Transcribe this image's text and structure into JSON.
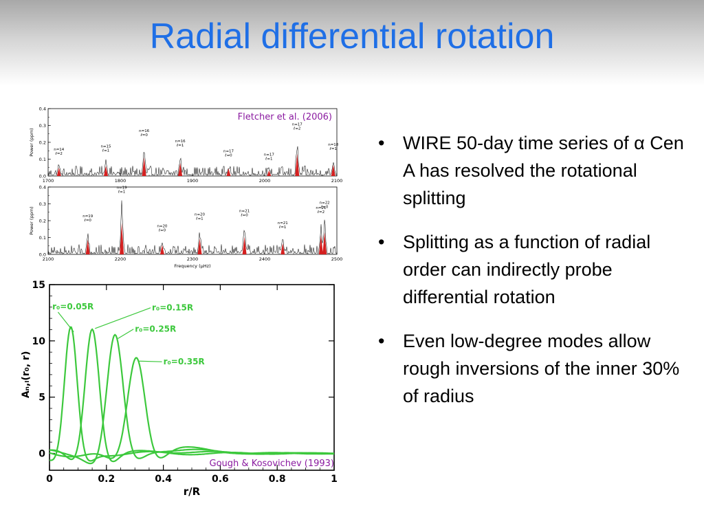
{
  "slide": {
    "title": "Radial differential rotation"
  },
  "bullets": [
    {
      "text": "WIRE 50-day time series of α Cen A has resolved the rotational splitting"
    },
    {
      "text": "Splitting as a function of radial order can indirectly probe differential rotation"
    },
    {
      "text": "Even low-degree modes allow rough inversions of the inner 30% of radius"
    }
  ],
  "bullet_glyph": "•",
  "chart_data": [
    {
      "type": "line",
      "caption": "Fletcher et al. (2006)",
      "panels": [
        {
          "ylabel": "Power (ppm)",
          "ylim": [
            0,
            0.4
          ],
          "yticks": [
            "0.0",
            "0.1",
            "0.2",
            "0.3",
            "0.4"
          ],
          "xlim": [
            1700,
            2100
          ],
          "xticks": [
            "1700",
            "1800",
            "1900",
            "2000",
            "2100"
          ],
          "mode_labels": [
            {
              "freq": 1715,
              "n": "n=14",
              "l": "ℓ=2"
            },
            {
              "freq": 1780,
              "n": "n=15",
              "l": "ℓ=1"
            },
            {
              "freq": 1833,
              "n": "n=16",
              "l": "ℓ=0"
            },
            {
              "freq": 1883,
              "n": "n=16",
              "l": "ℓ=1"
            },
            {
              "freq": 1950,
              "n": "n=17",
              "l": "ℓ=0"
            },
            {
              "freq": 2006,
              "n": "n=17",
              "l": "ℓ=1"
            },
            {
              "freq": 2045,
              "n": "n=17",
              "l": "ℓ=2"
            },
            {
              "freq": 2095,
              "n": "n=18",
              "l": "ℓ=1"
            }
          ]
        },
        {
          "ylabel": "Power (ppm)",
          "ylim": [
            0,
            0.4
          ],
          "yticks": [
            "0.0",
            "0.1",
            "0.2",
            "0.3",
            "0.4"
          ],
          "xlim": [
            2100,
            2500
          ],
          "xticks": [
            "2100",
            "2200",
            "2300",
            "2400",
            "2500"
          ],
          "xlabel": "Frequency (μHz)",
          "mode_labels": [
            {
              "freq": 2155,
              "n": "n=19",
              "l": "ℓ=0"
            },
            {
              "freq": 2202,
              "n": "n=19",
              "l": "ℓ=1"
            },
            {
              "freq": 2258,
              "n": "n=20",
              "l": "ℓ=0"
            },
            {
              "freq": 2310,
              "n": "n=20",
              "l": "ℓ=1"
            },
            {
              "freq": 2372,
              "n": "n=21",
              "l": "ℓ=0"
            },
            {
              "freq": 2425,
              "n": "n=21",
              "l": "ℓ=1"
            },
            {
              "freq": 2478,
              "n": "n=21",
              "l": "ℓ=2"
            },
            {
              "freq": 2483,
              "n": "n=22",
              "l": "ℓ=0"
            }
          ]
        }
      ]
    },
    {
      "type": "line",
      "caption": "Gough & Kosovichev (1993)",
      "xlabel": "r/R",
      "ylabel": "Aₙ,ₗ(r₀, r)",
      "xlim": [
        0,
        1
      ],
      "ylim": [
        -1.5,
        15
      ],
      "xticks": [
        "0",
        "0.2",
        "0.4",
        "0.6",
        "0.8",
        "1"
      ],
      "yticks": [
        "0",
        "5",
        "10",
        "15"
      ],
      "color": "#3cc83c",
      "series": [
        {
          "name": "r₀=0.05R",
          "peak_x": 0.075,
          "peak_y": 11.2
        },
        {
          "name": "r₀=0.15R",
          "peak_x": 0.15,
          "peak_y": 11.5
        },
        {
          "name": "r₀=0.25R",
          "peak_x": 0.23,
          "peak_y": 10.6
        },
        {
          "name": "r₀=0.35R",
          "peak_x": 0.305,
          "peak_y": 8.6
        }
      ]
    }
  ]
}
